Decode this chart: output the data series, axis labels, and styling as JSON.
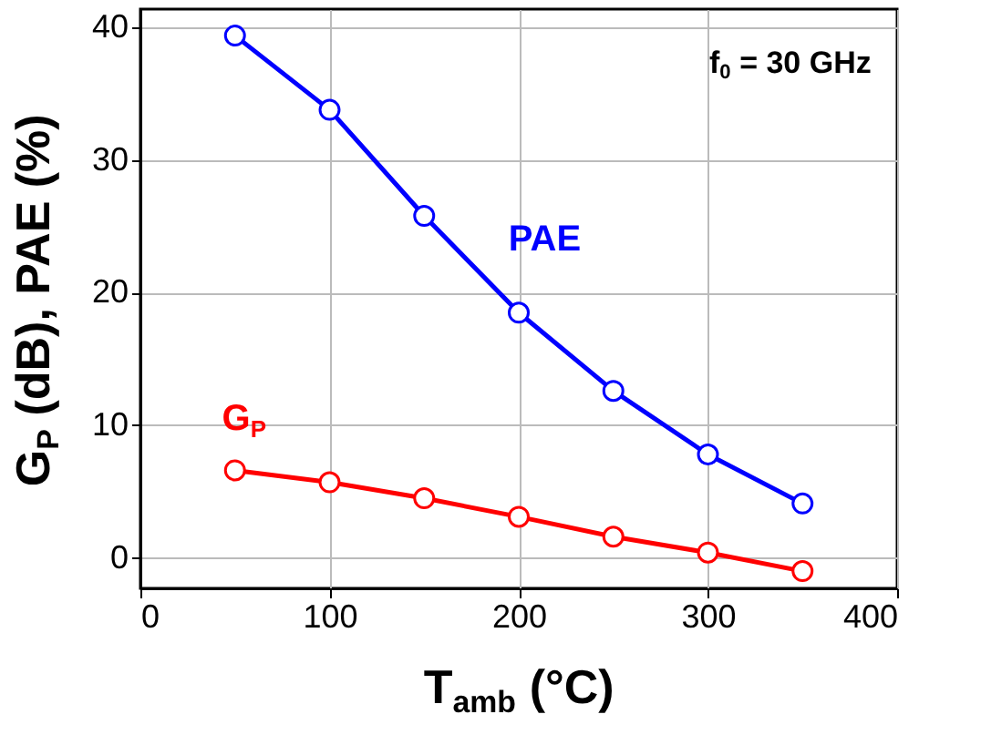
{
  "chart_data": {
    "type": "line",
    "xlabel": "T$_{amb}$ (°C)",
    "ylabel": "G$_{P}$ (dB), PAE (%)",
    "x": [
      50,
      100,
      150,
      200,
      250,
      300,
      350
    ],
    "series": [
      {
        "name": "PAE",
        "color": "#0000ff",
        "values": [
          39.4,
          33.8,
          25.8,
          18.5,
          12.6,
          7.8,
          4.1
        ]
      },
      {
        "name": "G$_{P}$",
        "color": "#ff0000",
        "values": [
          6.6,
          5.7,
          4.5,
          3.1,
          1.6,
          0.4,
          -1.0
        ]
      }
    ],
    "annotations": [
      "f$_{0}$ = 30 GHz"
    ],
    "xlim": [
      0,
      400
    ],
    "xticks": [
      0,
      100,
      200,
      300,
      400
    ],
    "ylim": [
      -2.3,
      41.4
    ],
    "yticks": [
      0,
      10,
      20,
      30,
      40
    ],
    "grid": true,
    "marker": "circle",
    "line_style": "solid"
  }
}
